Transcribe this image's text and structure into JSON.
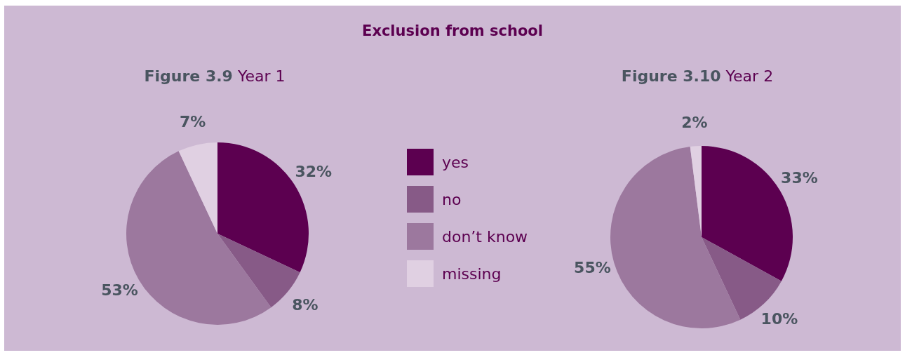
{
  "chart_data": [
    {
      "type": "pie",
      "title": "Exclusion from school",
      "subtitle": "Figure 3.9 Year 1",
      "categories": [
        "yes",
        "no",
        "don’t know",
        "missing"
      ],
      "values": [
        32,
        8,
        53,
        7
      ],
      "colors": [
        "#5c0050",
        "#875a87",
        "#9c789e",
        "#e0d0e2"
      ],
      "value_labels": [
        "32%",
        "8%",
        "53%",
        "7%"
      ],
      "legend": "right"
    },
    {
      "type": "pie",
      "title": "Figure 3.10 Year 2",
      "values": [
        33,
        10,
        55,
        2
      ],
      "colors": [
        "#5c0050",
        "#875a87",
        "#9c789e",
        "#e0d0e2"
      ],
      "value_labels": [
        "33%",
        "10%",
        "55%",
        "2%"
      ]
    }
  ]
}
